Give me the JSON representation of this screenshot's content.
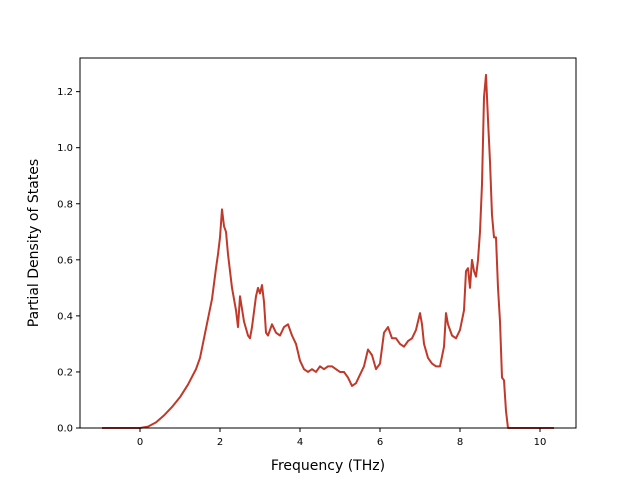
{
  "chart_data": {
    "type": "line",
    "title": "",
    "xlabel": "Frequency (THz)",
    "ylabel": "Partial Density of States",
    "xlim": [
      -1.5,
      10.9
    ],
    "ylim": [
      0,
      1.32
    ],
    "xticks": [
      0,
      2,
      4,
      6,
      8,
      10
    ],
    "xtick_labels": [
      "0",
      "2",
      "4",
      "6",
      "8",
      "10"
    ],
    "yticks": [
      0.0,
      0.2,
      0.4,
      0.6,
      0.8,
      1.0,
      1.2
    ],
    "ytick_labels": [
      "0.0",
      "0.2",
      "0.4",
      "0.6",
      "0.8",
      "1.0",
      "1.2"
    ],
    "grid": false,
    "legend": "none",
    "series": [
      {
        "color": "#c0392b",
        "x": [
          -0.95,
          -0.5,
          0,
          0.2,
          0.4,
          0.6,
          0.8,
          1.0,
          1.2,
          1.4,
          1.5,
          1.6,
          1.7,
          1.8,
          1.9,
          1.95,
          2.0,
          2.05,
          2.1,
          2.15,
          2.2,
          2.3,
          2.4,
          2.45,
          2.5,
          2.6,
          2.7,
          2.75,
          2.8,
          2.9,
          2.95,
          3.0,
          3.05,
          3.1,
          3.15,
          3.2,
          3.3,
          3.4,
          3.5,
          3.6,
          3.7,
          3.8,
          3.9,
          4.0,
          4.1,
          4.2,
          4.3,
          4.4,
          4.5,
          4.6,
          4.7,
          4.8,
          4.9,
          5.0,
          5.1,
          5.2,
          5.3,
          5.4,
          5.5,
          5.6,
          5.7,
          5.8,
          5.9,
          6.0,
          6.1,
          6.2,
          6.3,
          6.4,
          6.5,
          6.6,
          6.7,
          6.8,
          6.9,
          7.0,
          7.05,
          7.1,
          7.2,
          7.3,
          7.4,
          7.5,
          7.6,
          7.65,
          7.7,
          7.75,
          7.8,
          7.9,
          8.0,
          8.1,
          8.15,
          8.2,
          8.25,
          8.3,
          8.35,
          8.4,
          8.45,
          8.5,
          8.55,
          8.6,
          8.65,
          8.7,
          8.75,
          8.8,
          8.85,
          8.9,
          8.95,
          9.0,
          9.05,
          9.1,
          9.15,
          9.2,
          9.25,
          9.3,
          9.35,
          9.4,
          9.5,
          9.7,
          10.0,
          10.35
        ],
        "y": [
          0,
          0,
          0,
          0.005,
          0.02,
          0.045,
          0.075,
          0.11,
          0.155,
          0.21,
          0.25,
          0.32,
          0.39,
          0.46,
          0.57,
          0.62,
          0.68,
          0.78,
          0.72,
          0.7,
          0.62,
          0.5,
          0.42,
          0.36,
          0.47,
          0.38,
          0.33,
          0.32,
          0.36,
          0.47,
          0.5,
          0.48,
          0.51,
          0.45,
          0.34,
          0.33,
          0.37,
          0.34,
          0.33,
          0.36,
          0.37,
          0.33,
          0.3,
          0.24,
          0.21,
          0.2,
          0.21,
          0.2,
          0.22,
          0.21,
          0.22,
          0.22,
          0.21,
          0.2,
          0.2,
          0.18,
          0.15,
          0.16,
          0.19,
          0.22,
          0.28,
          0.26,
          0.21,
          0.23,
          0.34,
          0.36,
          0.32,
          0.32,
          0.3,
          0.29,
          0.31,
          0.32,
          0.35,
          0.41,
          0.37,
          0.3,
          0.25,
          0.23,
          0.22,
          0.22,
          0.29,
          0.41,
          0.37,
          0.35,
          0.33,
          0.32,
          0.35,
          0.42,
          0.56,
          0.57,
          0.5,
          0.6,
          0.56,
          0.54,
          0.6,
          0.7,
          0.87,
          1.18,
          1.26,
          1.1,
          0.95,
          0.76,
          0.68,
          0.68,
          0.5,
          0.38,
          0.18,
          0.17,
          0.06,
          0.0,
          0,
          0,
          0,
          0,
          0,
          0,
          0,
          0
        ]
      }
    ]
  }
}
